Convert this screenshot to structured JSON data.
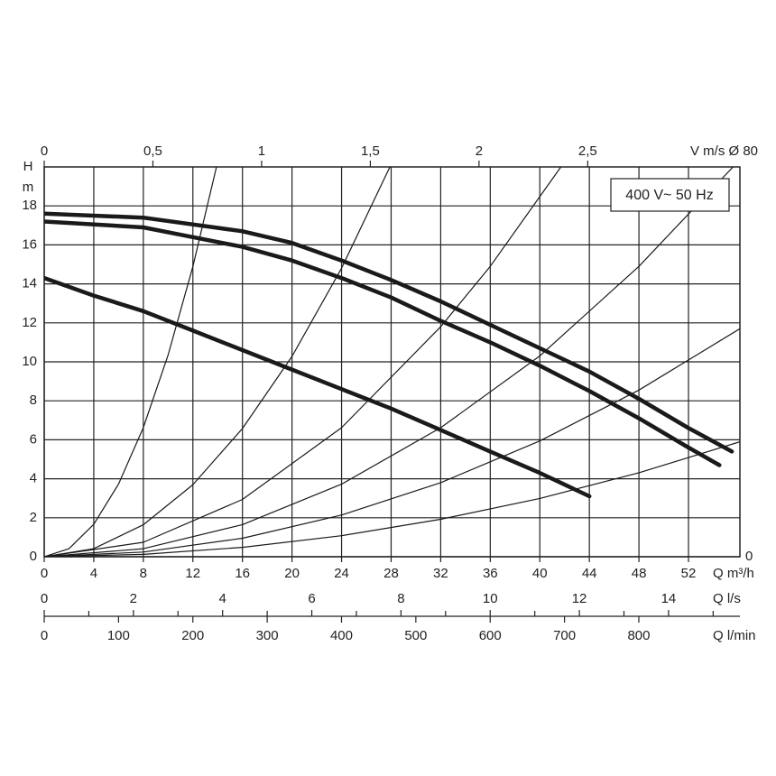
{
  "chart_data": {
    "type": "line",
    "y_label_top": "H",
    "y_label_unit": "m",
    "x_label": "Q m³/h",
    "top_axis_label": "V m/s Ø 80",
    "right_label": "0",
    "annotation": "400 V~ 50 Hz",
    "xlim": [
      0,
      56.15
    ],
    "xticks": [
      0,
      4,
      8,
      12,
      16,
      20,
      24,
      28,
      32,
      36,
      40,
      44,
      48,
      52
    ],
    "ylim": [
      0,
      20
    ],
    "yticks": [
      0,
      2,
      4,
      6,
      8,
      10,
      12,
      14,
      16,
      18
    ],
    "grid": true,
    "top_axis": {
      "xlim": [
        0,
        3.2
      ],
      "xticks": [
        0,
        {
          "value": 0.5,
          "label": "0,5"
        },
        1,
        {
          "value": 1.5,
          "label": "1,5"
        },
        2,
        {
          "value": 2.5,
          "label": "2,5"
        }
      ]
    },
    "ls_axis": {
      "label": "Q l/s",
      "xlim": [
        0,
        15.6
      ],
      "xticks": [
        0,
        2,
        4,
        6,
        8,
        10,
        12,
        14
      ],
      "minor_ticks": [
        1,
        3,
        5,
        7,
        9,
        11,
        13,
        15
      ]
    },
    "lmin_axis": {
      "label": "Q l/min",
      "xlim": [
        0,
        936
      ],
      "xticks": [
        0,
        100,
        200,
        300,
        400,
        500,
        600,
        700,
        800
      ]
    },
    "series": [
      {
        "color": "#1a1a1a",
        "width": 4.5,
        "x": [
          0,
          8,
          16,
          20,
          24,
          28,
          32,
          36,
          40,
          44,
          48,
          52,
          55.5
        ],
        "values": [
          17.6,
          17.4,
          16.7,
          16.1,
          15.2,
          14.2,
          13.1,
          11.9,
          10.7,
          9.5,
          8.1,
          6.6,
          5.4
        ]
      },
      {
        "color": "#1a1a1a",
        "width": 4.5,
        "x": [
          0,
          8,
          12,
          16,
          20,
          24,
          28,
          32,
          36,
          40,
          44,
          48,
          52,
          54.5
        ],
        "values": [
          17.2,
          16.9,
          16.4,
          15.9,
          15.2,
          14.3,
          13.3,
          12.1,
          11.0,
          9.8,
          8.5,
          7.1,
          5.6,
          4.7
        ]
      },
      {
        "color": "#1a1a1a",
        "width": 4.5,
        "x": [
          0,
          4,
          8,
          12,
          16,
          20,
          24,
          28,
          32,
          36,
          40,
          44
        ],
        "values": [
          14.3,
          13.4,
          12.6,
          11.6,
          10.6,
          9.6,
          8.6,
          7.6,
          6.5,
          5.4,
          4.3,
          3.1
        ]
      },
      {
        "color": "#1a1a1a",
        "width": 1.2,
        "x": [
          0,
          2,
          4,
          6,
          8,
          10,
          12,
          13.9
        ],
        "values": [
          0,
          0.41,
          1.66,
          3.73,
          6.62,
          10.35,
          14.9,
          20
        ]
      },
      {
        "color": "#1a1a1a",
        "width": 1.2,
        "x": [
          0,
          4,
          8,
          12,
          16,
          20,
          24,
          27.9
        ],
        "values": [
          0,
          0.41,
          1.64,
          3.7,
          6.58,
          10.28,
          14.8,
          20
        ]
      },
      {
        "color": "#1a1a1a",
        "width": 1.2,
        "x": [
          0,
          8,
          16,
          24,
          32,
          36,
          41.7
        ],
        "values": [
          0,
          0.74,
          2.94,
          6.62,
          11.8,
          14.9,
          20
        ]
      },
      {
        "color": "#1a1a1a",
        "width": 1.2,
        "x": [
          0,
          8,
          16,
          24,
          32,
          40,
          48,
          55.6
        ],
        "values": [
          0,
          0.41,
          1.65,
          3.72,
          6.62,
          10.3,
          14.9,
          20
        ]
      },
      {
        "color": "#1a1a1a",
        "width": 1.2,
        "x": [
          0,
          8,
          16,
          24,
          32,
          40,
          48,
          56.15
        ],
        "values": [
          0,
          0.24,
          0.95,
          2.14,
          3.8,
          5.94,
          8.55,
          11.7
        ]
      },
      {
        "color": "#1a1a1a",
        "width": 1.2,
        "x": [
          0,
          8,
          16,
          24,
          32,
          40,
          48,
          56.15
        ],
        "values": [
          0,
          0.12,
          0.48,
          1.08,
          1.92,
          2.99,
          4.31,
          5.9
        ]
      }
    ]
  }
}
